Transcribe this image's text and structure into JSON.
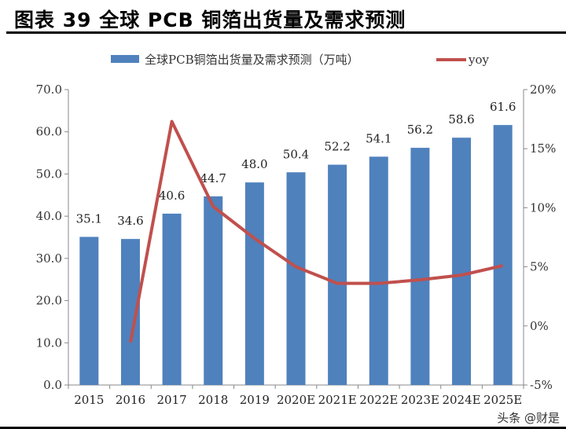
{
  "title": "图表 39 全球 PCB 铜箔出货量及需求预测",
  "watermark": "头条 @财是",
  "chart_data": {
    "type": "bar+line",
    "categories": [
      "2015",
      "2016",
      "2017",
      "2018",
      "2019",
      "2020E",
      "2021E",
      "2022E",
      "2023E",
      "2024E",
      "2025E"
    ],
    "series": [
      {
        "name": "全球PCB铜箔出货量及需求预测（万吨）",
        "type": "bar",
        "axis": "left",
        "color": "#4F81BD",
        "values": [
          35.1,
          34.6,
          40.6,
          44.7,
          48.0,
          50.4,
          52.2,
          54.1,
          56.2,
          58.6,
          61.6
        ],
        "labels": [
          "35.1",
          "34.6",
          "40.6",
          "44.7",
          "48.0",
          "50.4",
          "52.2",
          "54.1",
          "56.2",
          "58.6",
          "61.6"
        ]
      },
      {
        "name": "yoy",
        "type": "line",
        "axis": "right",
        "color": "#C0504D",
        "values": [
          null,
          -1.4,
          17.3,
          10.1,
          7.4,
          5.0,
          3.6,
          3.6,
          3.9,
          4.3,
          5.1
        ]
      }
    ],
    "left_axis": {
      "ylim": [
        0,
        70
      ],
      "ticks": [
        "0.0",
        "10.0",
        "20.0",
        "30.0",
        "40.0",
        "50.0",
        "60.0",
        "70.0"
      ]
    },
    "right_axis": {
      "ylim": [
        -5,
        20
      ],
      "ticks": [
        "-5%",
        "0%",
        "5%",
        "10%",
        "15%",
        "20%"
      ]
    },
    "legend": "top",
    "grid": false
  }
}
